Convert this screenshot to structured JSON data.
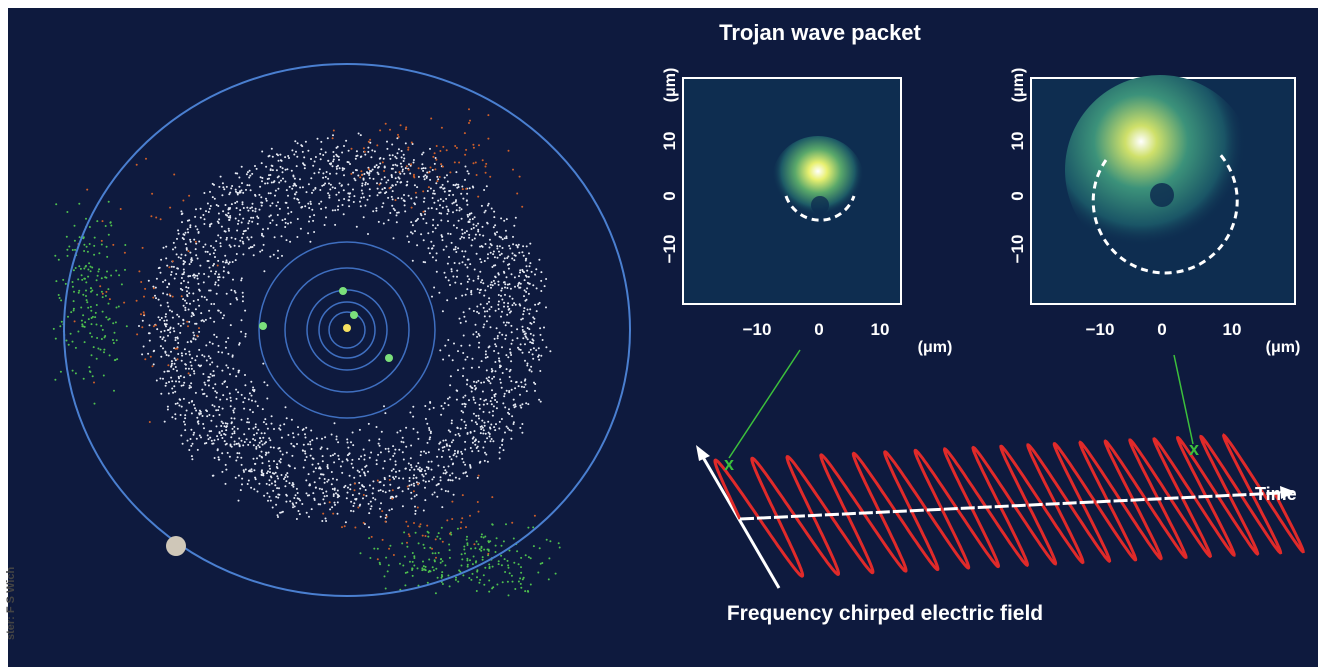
{
  "title": "Trojan wave packet",
  "panels": [
    {
      "y_ticks": [
        "10",
        "0",
        "−10"
      ],
      "y_unit": "(μm)",
      "x_ticks": [
        "−10",
        "0",
        "10"
      ],
      "x_unit": "(μm)"
    },
    {
      "y_ticks": [
        "10",
        "0",
        "−10"
      ],
      "y_unit": "(μm)",
      "x_ticks": [
        "−10",
        "0",
        "10"
      ],
      "x_unit": "(μm)"
    }
  ],
  "time_label": "Time",
  "caption": "Frequency chirped electric field",
  "credit": "ster: F S Wich"
}
